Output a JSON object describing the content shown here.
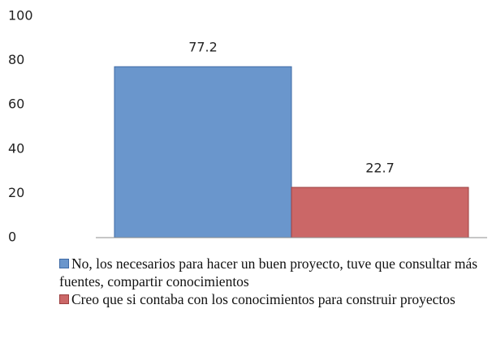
{
  "chart_data": {
    "type": "bar",
    "categories": [
      null
    ],
    "series": [
      {
        "name": "No, los necesarios para hacer un buen proyecto, tuve que consultar más fuentes, compartir conocimientos",
        "color": "#6a96cc",
        "stroke": "#3e6aa5",
        "values": [
          77.2
        ]
      },
      {
        "name": "Creo que si contaba con los conocimientos para construir proyectos",
        "color": "#cb6767",
        "stroke": "#9c4040",
        "values": [
          22.7
        ]
      }
    ],
    "ylim": [
      0,
      100
    ],
    "yticks": [
      0,
      20,
      40,
      60,
      80,
      100
    ],
    "grid": false
  }
}
